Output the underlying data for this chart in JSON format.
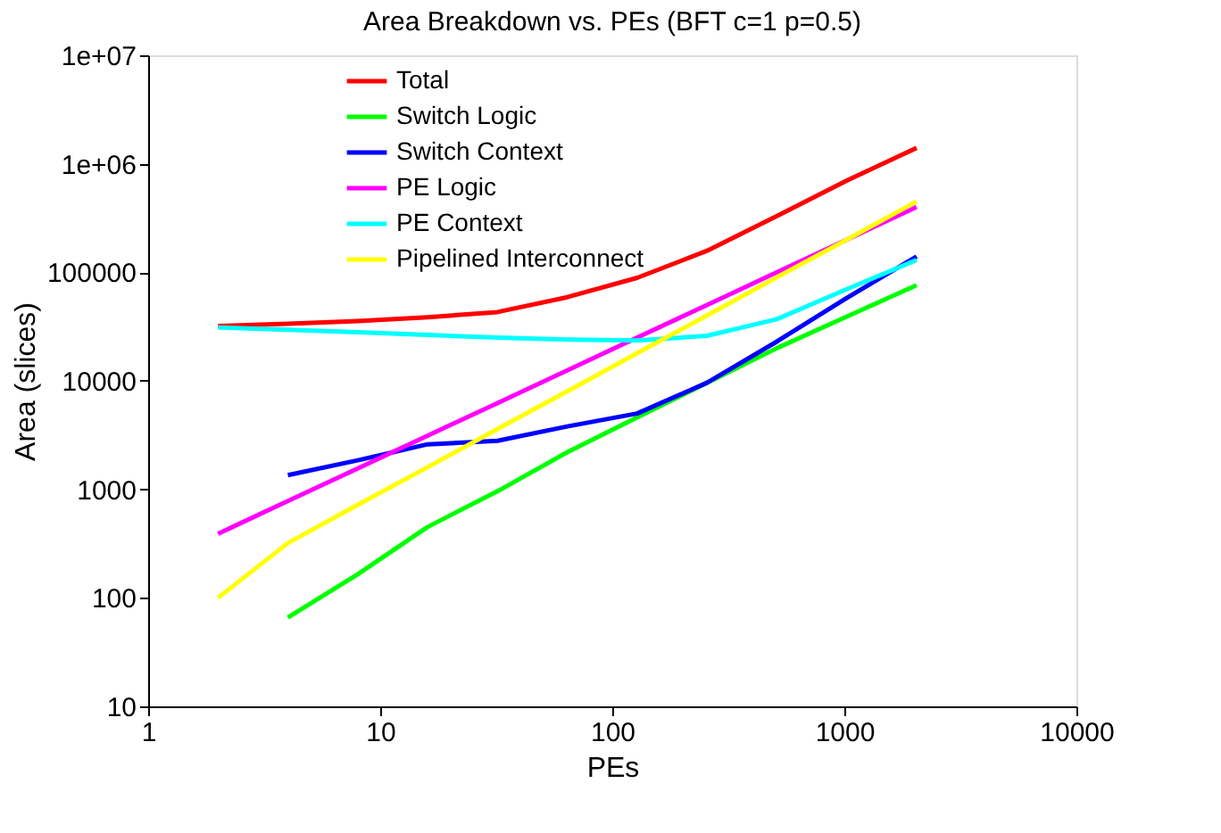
{
  "chart_data": {
    "type": "line",
    "title": "Area Breakdown vs. PEs (BFT c=1 p=0.5)",
    "xlabel": "PEs",
    "ylabel": "Area (slices)",
    "x": [
      2,
      4,
      8,
      16,
      32,
      64,
      128,
      256,
      512,
      1024,
      2048
    ],
    "series": [
      {
        "name": "Total",
        "color": "#ff0000",
        "values": [
          32000,
          33500,
          35500,
          38500,
          43000,
          59000,
          89000,
          158000,
          330000,
          700000,
          1400000
        ]
      },
      {
        "name": "Switch Logic",
        "color": "#00ff00",
        "values": [
          null,
          66,
          165,
          450,
          960,
          2200,
          4600,
          9600,
          20000,
          39000,
          76000
        ]
      },
      {
        "name": "Switch Context",
        "color": "#0000ff",
        "values": [
          null,
          1350,
          1850,
          2600,
          2800,
          3800,
          5000,
          9600,
          23000,
          58000,
          140000
        ]
      },
      {
        "name": "PE Logic",
        "color": "#ff00ff",
        "values": [
          390,
          780,
          1560,
          3120,
          6240,
          12500,
          25000,
          50000,
          100000,
          200000,
          400000
        ]
      },
      {
        "name": "PE Context",
        "color": "#00ffff",
        "values": [
          31000,
          29500,
          28000,
          26500,
          25000,
          24000,
          23500,
          26000,
          37000,
          70000,
          130000
        ]
      },
      {
        "name": "Pipelined Interconnect",
        "color": "#ffff00",
        "values": [
          100,
          320,
          720,
          1600,
          3600,
          8000,
          18000,
          40000,
          90000,
          200000,
          450000
        ]
      }
    ],
    "log": "xy",
    "xlim": [
      1,
      10000
    ],
    "xticks": [
      1,
      10,
      100,
      1000,
      10000
    ],
    "ylim": [
      10,
      10000000
    ],
    "yticks": [
      10,
      100,
      1000,
      10000,
      100000,
      {
        "value": 1000000,
        "label": "1e+06"
      },
      {
        "value": 10000000,
        "label": "1e+07"
      }
    ],
    "grid": false,
    "legend": "top",
    "line_style": "solid",
    "marker": "none"
  }
}
